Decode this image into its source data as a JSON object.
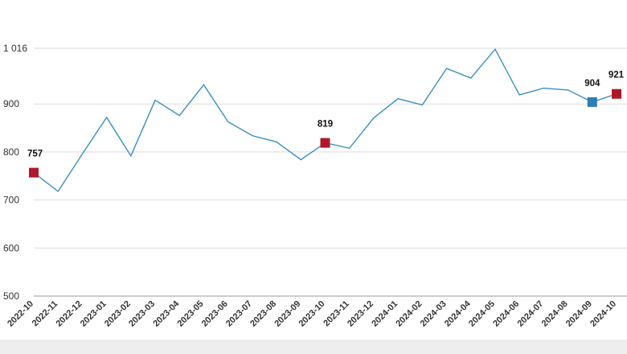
{
  "colors": {
    "line": "#3a8fc0",
    "highlight_red": "#b0182a",
    "highlight_blue": "#2f7db5",
    "grid": "#d9d9d9",
    "axis": "#999999",
    "footer": "#eeeeee"
  },
  "chart_data": {
    "type": "line",
    "title": "",
    "xlabel": "",
    "ylabel": "",
    "ylim": [
      500,
      1016
    ],
    "yticks": [
      500,
      600,
      700,
      800,
      900,
      1016
    ],
    "ytick_labels": [
      "500",
      "600",
      "700",
      "800",
      "900",
      "1 016"
    ],
    "grid": "horizontal",
    "categories": [
      "2022-10",
      "2022-11",
      "2022-12",
      "2023-01",
      "2023-02",
      "2023-03",
      "2023-04",
      "2023-05",
      "2023-06",
      "2023-07",
      "2023-08",
      "2023-09",
      "2023-10",
      "2023-11",
      "2023-12",
      "2024-01",
      "2024-02",
      "2024-03",
      "2024-04",
      "2024-05",
      "2024-06",
      "2024-07",
      "2024-08",
      "2024-09",
      "2024-10"
    ],
    "series": [
      {
        "values": [
          757,
          718,
          796,
          872,
          792,
          908,
          876,
          940,
          863,
          834,
          821,
          784,
          819,
          808,
          871,
          911,
          898,
          974,
          954,
          1014,
          919,
          933,
          929,
          904,
          921
        ]
      }
    ],
    "highlights": [
      {
        "index": 0,
        "label": "757",
        "color": "red"
      },
      {
        "index": 12,
        "label": "819",
        "color": "red"
      },
      {
        "index": 23,
        "label": "904",
        "color": "blue"
      },
      {
        "index": 24,
        "label": "921",
        "color": "red"
      }
    ]
  }
}
